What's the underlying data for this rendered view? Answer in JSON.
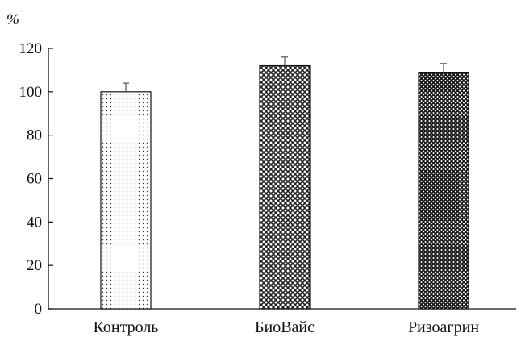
{
  "chart_data": {
    "type": "bar",
    "unit_label": "%",
    "categories": [
      "Контроль",
      "БиоВайс",
      "Ризоагрин"
    ],
    "values": [
      100,
      112,
      109
    ],
    "errors": [
      4,
      4,
      4
    ],
    "patterns": [
      "dots-sparse",
      "crosshatch-medium",
      "crosshatch-dense"
    ],
    "ylim": [
      0,
      120
    ],
    "yticks": [
      0,
      20,
      40,
      60,
      80,
      100,
      120
    ],
    "grid": false,
    "legend": false,
    "colors": {
      "axis": "#111111",
      "bar_fill": "#ffffff",
      "pattern": "#222222"
    }
  }
}
